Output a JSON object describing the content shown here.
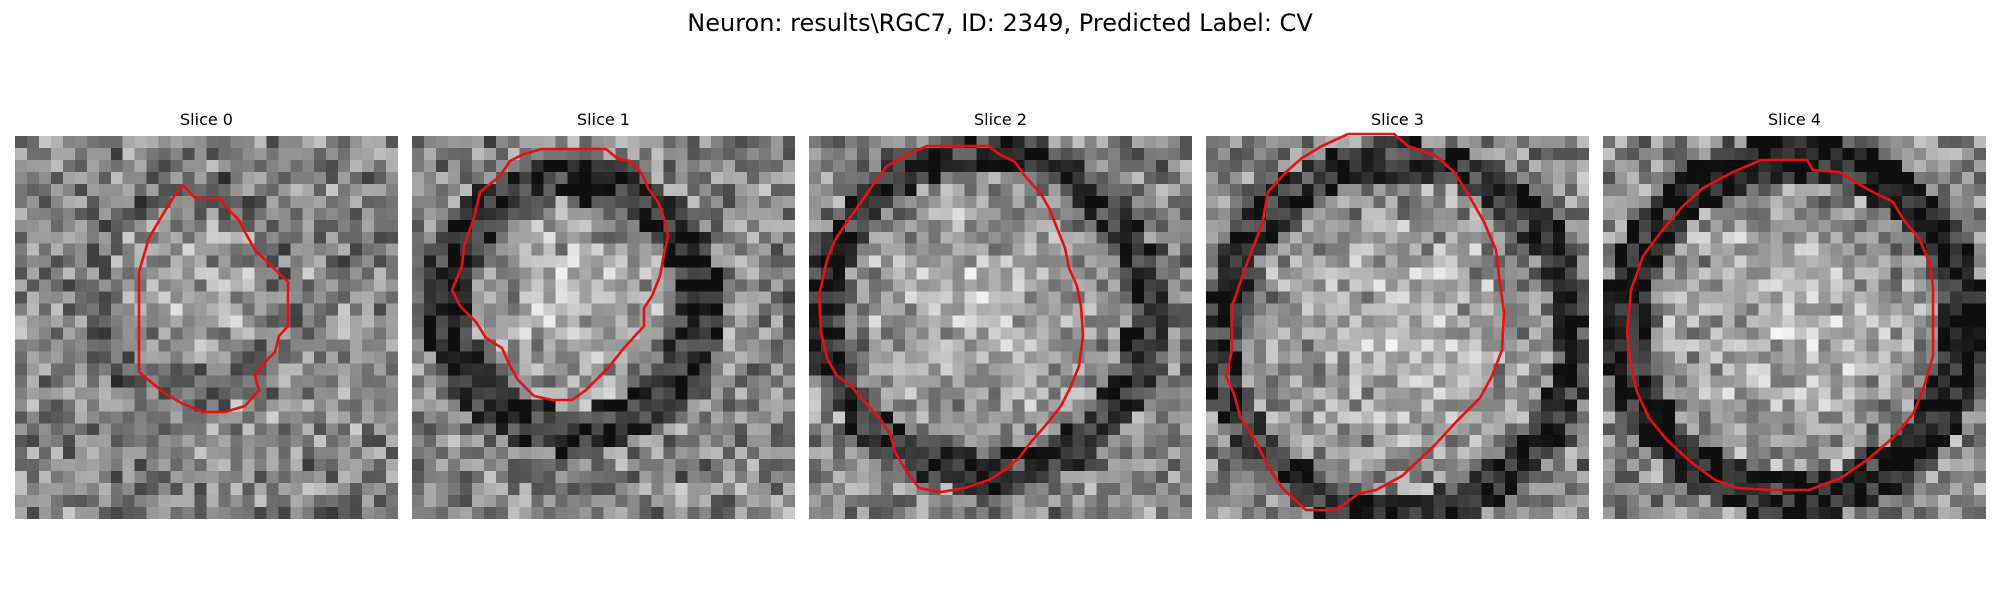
{
  "figure": {
    "title": "Neuron: results\\RGC7, ID: 2349, Predicted Label: CV",
    "contour_color": "#e81010"
  },
  "panels": [
    {
      "title": "Slice 0"
    },
    {
      "title": "Slice 1"
    },
    {
      "title": "Slice 2"
    },
    {
      "title": "Slice 3"
    },
    {
      "title": "Slice 4"
    }
  ]
}
